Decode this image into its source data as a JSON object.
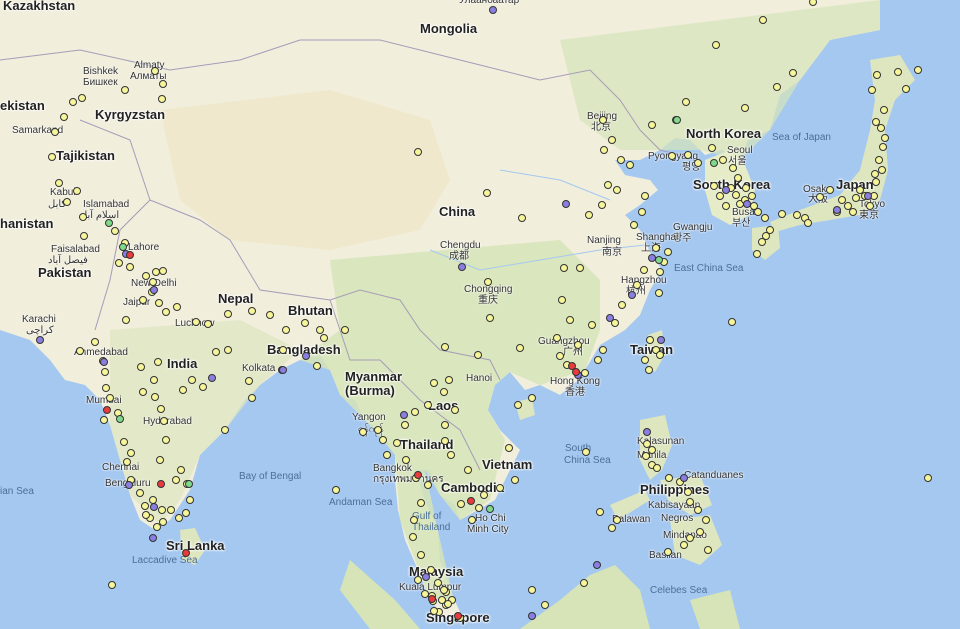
{
  "colors": {
    "water": "#a5c8f0",
    "land": "#f1eedc",
    "green_land": "#d6e4b8",
    "desert": "#efe8cc",
    "border": "#a59cb8",
    "dot_yellow": "#f6f59a",
    "dot_purple": "#8a7fe0",
    "dot_red": "#e83b3b",
    "dot_green": "#7fd98a"
  },
  "labels": [
    {
      "kind": "country",
      "text": "Kazakhstan"
    },
    {
      "kind": "country",
      "text": "Mongolia"
    },
    {
      "kind": "city",
      "text": "Улаанбаатар"
    },
    {
      "kind": "country",
      "text": "ekistan"
    },
    {
      "kind": "country",
      "text": "Kyrgyzstan"
    },
    {
      "kind": "city",
      "text": "Bishkek"
    },
    {
      "kind": "city",
      "text": "Бишкек"
    },
    {
      "kind": "city",
      "text": "Almaty"
    },
    {
      "kind": "city",
      "text": "Алматы"
    },
    {
      "kind": "city",
      "text": "Samarkand"
    },
    {
      "kind": "country",
      "text": "Tajikistan"
    },
    {
      "kind": "city",
      "text": "Kabul"
    },
    {
      "kind": "city",
      "text": "کابل"
    },
    {
      "kind": "country",
      "text": "hanistan"
    },
    {
      "kind": "city",
      "text": "Islamabad"
    },
    {
      "kind": "city",
      "text": "اسلام آباد"
    },
    {
      "kind": "city",
      "text": "Faisalabad"
    },
    {
      "kind": "city",
      "text": "فیصل آباد"
    },
    {
      "kind": "city",
      "text": "Lahore"
    },
    {
      "kind": "country",
      "text": "Pakistan"
    },
    {
      "kind": "city",
      "text": "New Delhi"
    },
    {
      "kind": "city",
      "text": "Jaipur"
    },
    {
      "kind": "city",
      "text": "Karachi"
    },
    {
      "kind": "city",
      "text": "کراچی"
    },
    {
      "kind": "country",
      "text": "Nepal"
    },
    {
      "kind": "country",
      "text": "Bhutan"
    },
    {
      "kind": "city",
      "text": "Lucknow"
    },
    {
      "kind": "city",
      "text": "Ahmedabad"
    },
    {
      "kind": "country",
      "text": "India"
    },
    {
      "kind": "country",
      "text": "Bangladesh"
    },
    {
      "kind": "city",
      "text": "Kolkata"
    },
    {
      "kind": "city",
      "text": "Mumbai"
    },
    {
      "kind": "city",
      "text": "Hyderabad"
    },
    {
      "kind": "water",
      "text": "Bay of Bengal"
    },
    {
      "kind": "city",
      "text": "Chennai"
    },
    {
      "kind": "city",
      "text": "Bengaluru"
    },
    {
      "kind": "water",
      "text": "ian Sea"
    },
    {
      "kind": "country",
      "text": "Sri Lanka"
    },
    {
      "kind": "water",
      "text": "Laccadive Sea"
    },
    {
      "kind": "country",
      "text": "China"
    },
    {
      "kind": "city",
      "text": "Chengdu"
    },
    {
      "kind": "city",
      "text": "成都"
    },
    {
      "kind": "city",
      "text": "Chongqing"
    },
    {
      "kind": "city",
      "text": "重庆"
    },
    {
      "kind": "city",
      "text": "Beijing"
    },
    {
      "kind": "city",
      "text": "北京"
    },
    {
      "kind": "country",
      "text": "North Korea"
    },
    {
      "kind": "city",
      "text": "Pyongyang"
    },
    {
      "kind": "city",
      "text": "평양"
    },
    {
      "kind": "city",
      "text": "Seoul"
    },
    {
      "kind": "city",
      "text": "서울"
    },
    {
      "kind": "country",
      "text": "South Korea"
    },
    {
      "kind": "city",
      "text": "Gwangju"
    },
    {
      "kind": "city",
      "text": "광주"
    },
    {
      "kind": "city",
      "text": "Busan"
    },
    {
      "kind": "city",
      "text": "부산"
    },
    {
      "kind": "water",
      "text": "Sea of Japan"
    },
    {
      "kind": "country",
      "text": "Japan"
    },
    {
      "kind": "city",
      "text": "Osaka"
    },
    {
      "kind": "city",
      "text": "大阪"
    },
    {
      "kind": "city",
      "text": "Tokyo"
    },
    {
      "kind": "city",
      "text": "東京"
    },
    {
      "kind": "city",
      "text": "Nanjing"
    },
    {
      "kind": "city",
      "text": "南京"
    },
    {
      "kind": "city",
      "text": "Shanghai"
    },
    {
      "kind": "city",
      "text": "上海"
    },
    {
      "kind": "city",
      "text": "Hangzhou"
    },
    {
      "kind": "city",
      "text": "杭州"
    },
    {
      "kind": "water",
      "text": "East China Sea"
    },
    {
      "kind": "country",
      "text": "Taiwan"
    },
    {
      "kind": "city",
      "text": "Guangzhou"
    },
    {
      "kind": "city",
      "text": "广州"
    },
    {
      "kind": "city",
      "text": "Hong Kong"
    },
    {
      "kind": "city",
      "text": "香港"
    },
    {
      "kind": "country",
      "text": "Myanmar"
    },
    {
      "kind": "country",
      "text": "(Burma)"
    },
    {
      "kind": "city",
      "text": "Hanoi"
    },
    {
      "kind": "country",
      "text": "Laos"
    },
    {
      "kind": "city",
      "text": "Yangon"
    },
    {
      "kind": "city",
      "text": "ရန်ကုန်"
    },
    {
      "kind": "country",
      "text": "Thailand"
    },
    {
      "kind": "city",
      "text": "Bangkok"
    },
    {
      "kind": "city",
      "text": "กรุงเทพมหานคร"
    },
    {
      "kind": "country",
      "text": "Vietnam"
    },
    {
      "kind": "country",
      "text": "Cambodia"
    },
    {
      "kind": "water",
      "text": "Andaman Sea"
    },
    {
      "kind": "water",
      "text": "Gulf of"
    },
    {
      "kind": "water",
      "text": "Thailand"
    },
    {
      "kind": "city",
      "text": "Ho Chi"
    },
    {
      "kind": "city",
      "text": "Minh City"
    },
    {
      "kind": "water",
      "text": "South"
    },
    {
      "kind": "water",
      "text": "China Sea"
    },
    {
      "kind": "city",
      "text": "Kalasunan"
    },
    {
      "kind": "city",
      "text": "Manila"
    },
    {
      "kind": "country",
      "text": "Philippines"
    },
    {
      "kind": "city",
      "text": "Catanduanes"
    },
    {
      "kind": "city",
      "text": "Palawan"
    },
    {
      "kind": "city",
      "text": "Kabisayaan"
    },
    {
      "kind": "city",
      "text": "Negros"
    },
    {
      "kind": "city",
      "text": "Mindanao"
    },
    {
      "kind": "city",
      "text": "Basilan"
    },
    {
      "kind": "water",
      "text": "Celebes Sea"
    },
    {
      "kind": "country",
      "text": "Malaysia"
    },
    {
      "kind": "city",
      "text": "Kuala Lumpur"
    },
    {
      "kind": "country",
      "text": "Singapore"
    }
  ],
  "markers": {
    "yellow_count": 300,
    "purple_count": 28,
    "red_count": 10,
    "green_count": 8
  }
}
